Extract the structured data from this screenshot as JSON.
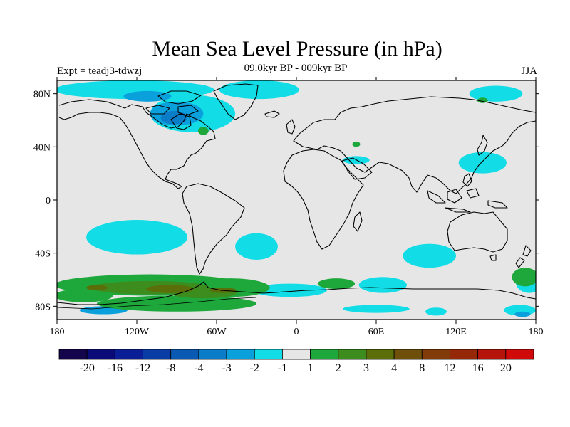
{
  "title": "Mean Sea Level Pressure (in hPa)",
  "left_label": "Expt = teadj3-tdwzj",
  "center_label": "09.0kyr BP - 009kyr BP",
  "right_label": "JJA",
  "map": {
    "lon_range": [
      -180,
      180
    ],
    "lat_range": [
      -90,
      90
    ],
    "background_color": "#e6e6e6",
    "lon_ticks": [
      {
        "value": -180,
        "label": "180"
      },
      {
        "value": -120,
        "label": "120W"
      },
      {
        "value": -60,
        "label": "60W"
      },
      {
        "value": 0,
        "label": "0"
      },
      {
        "value": 60,
        "label": "60E"
      },
      {
        "value": 120,
        "label": "120E"
      },
      {
        "value": 180,
        "label": "180"
      }
    ],
    "lat_ticks": [
      {
        "value": 80,
        "label": "80N"
      },
      {
        "value": 40,
        "label": "40N"
      },
      {
        "value": 0,
        "label": "0"
      },
      {
        "value": -40,
        "label": "40S"
      },
      {
        "value": -80,
        "label": "80S"
      }
    ]
  },
  "colorbar": {
    "colors": [
      "#14044c",
      "#0a0a78",
      "#0a1e96",
      "#0a3ca6",
      "#0a5ab4",
      "#0a7cc8",
      "#0aa0dc",
      "#12dce6",
      "#e6e6e6",
      "#1ea83c",
      "#3c8c1e",
      "#5a6e0a",
      "#6e500a",
      "#823c0a",
      "#96280a",
      "#b4140a",
      "#d00a0a"
    ],
    "labels": [
      "-20",
      "-16",
      "-12",
      "-8",
      "-4",
      "-3",
      "-2",
      "-1",
      "1",
      "2",
      "3",
      "4",
      "8",
      "12",
      "16",
      "20"
    ]
  },
  "anomalies": [
    {
      "level": "-1",
      "color": "#12dce6",
      "shapes": [
        {
          "lon": -122,
          "lat": 83,
          "rx": 60,
          "ry": 7
        },
        {
          "lon": -28,
          "lat": 83,
          "rx": 30,
          "ry": 7
        },
        {
          "lon": -78,
          "lat": 65,
          "rx": 32,
          "ry": 14
        },
        {
          "lon": 150,
          "lat": 80,
          "rx": 20,
          "ry": 6
        },
        {
          "lon": 45,
          "lat": 30,
          "rx": 10,
          "ry": 3
        },
        {
          "lon": 140,
          "lat": 28,
          "rx": 18,
          "ry": 8
        },
        {
          "lon": -120,
          "lat": -28,
          "rx": 38,
          "ry": 13
        },
        {
          "lon": -30,
          "lat": -35,
          "rx": 16,
          "ry": 10
        },
        {
          "lon": 100,
          "lat": -42,
          "rx": 20,
          "ry": 9
        },
        {
          "lon": -5,
          "lat": -68,
          "rx": 28,
          "ry": 5
        },
        {
          "lon": 65,
          "lat": -64,
          "rx": 18,
          "ry": 6
        },
        {
          "lon": 175,
          "lat": -62,
          "rx": 10,
          "ry": 8
        },
        {
          "lon": 60,
          "lat": -82,
          "rx": 25,
          "ry": 3
        },
        {
          "lon": 105,
          "lat": -84,
          "rx": 8,
          "ry": 3
        },
        {
          "lon": 168,
          "lat": -83,
          "rx": 12,
          "ry": 4
        }
      ]
    },
    {
      "level": "-2",
      "color": "#0aa0dc",
      "shapes": [
        {
          "lon": -90,
          "lat": 65,
          "rx": 20,
          "ry": 9
        },
        {
          "lon": -112,
          "lat": 78,
          "rx": 18,
          "ry": 4
        },
        {
          "lon": -145,
          "lat": -83,
          "rx": 18,
          "ry": 3
        },
        {
          "lon": 170,
          "lat": -86,
          "rx": 6,
          "ry": 2
        }
      ]
    },
    {
      "level": "-3",
      "color": "#0a7cc8",
      "shapes": [
        {
          "lon": -92,
          "lat": 62,
          "rx": 10,
          "ry": 5
        }
      ]
    },
    {
      "level": "1",
      "color": "#1ea83c",
      "shapes": [
        {
          "lon": -110,
          "lat": -64,
          "rx": 72,
          "ry": 8
        },
        {
          "lon": -50,
          "lat": -66,
          "rx": 30,
          "ry": 7
        },
        {
          "lon": -160,
          "lat": -72,
          "rx": 22,
          "ry": 5
        },
        {
          "lon": -90,
          "lat": -78,
          "rx": 60,
          "ry": 6
        },
        {
          "lon": 30,
          "lat": -63,
          "rx": 14,
          "ry": 4
        },
        {
          "lon": 172,
          "lat": -58,
          "rx": 10,
          "ry": 7
        },
        {
          "lon": -70,
          "lat": 52,
          "rx": 4,
          "ry": 3
        },
        {
          "lon": 45,
          "lat": 42,
          "rx": 3,
          "ry": 2
        },
        {
          "lon": 140,
          "lat": 75,
          "rx": 4,
          "ry": 2
        }
      ]
    },
    {
      "level": "2",
      "color": "#3c8c1e",
      "shapes": [
        {
          "lon": -110,
          "lat": -66,
          "rx": 45,
          "ry": 5
        },
        {
          "lon": -70,
          "lat": -70,
          "rx": 25,
          "ry": 4
        }
      ]
    },
    {
      "level": "3",
      "color": "#5a6e0a",
      "shapes": [
        {
          "lon": -95,
          "lat": -67,
          "rx": 18,
          "ry": 3
        },
        {
          "lon": -55,
          "lat": -68,
          "rx": 10,
          "ry": 2
        },
        {
          "lon": -150,
          "lat": -66,
          "rx": 8,
          "ry": 2
        }
      ]
    }
  ]
}
